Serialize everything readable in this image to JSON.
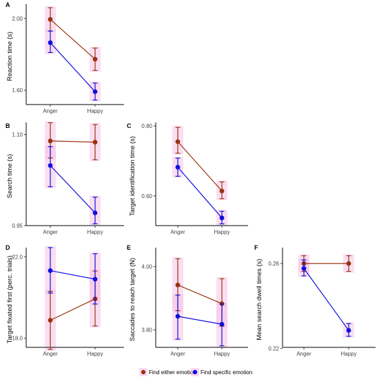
{
  "colors": {
    "either": "#993311",
    "specific": "#1010DD",
    "highlight": "#F6C2E6"
  },
  "legend": {
    "items": [
      {
        "key": "either",
        "label": "Find either emotion"
      },
      {
        "key": "specific",
        "label": "Find specific emotion"
      }
    ]
  },
  "chart_data": [
    {
      "id": "A",
      "type": "line",
      "letter": "A",
      "ylabel": "Reaction time (s)",
      "categories": [
        "Anger",
        "Happy"
      ],
      "ylim": [
        1.52,
        2.08
      ],
      "yticks": [
        1.6,
        2.0
      ],
      "ytick_labels": [
        "1.60",
        "2.00"
      ],
      "series": [
        {
          "key": "either",
          "values": [
            1.995,
            1.773
          ],
          "lower": [
            1.93,
            1.71
          ],
          "upper": [
            2.06,
            1.835
          ]
        },
        {
          "key": "specific",
          "values": [
            1.865,
            1.592
          ],
          "lower": [
            1.81,
            1.545
          ],
          "upper": [
            1.93,
            1.64
          ]
        }
      ]
    },
    {
      "id": "B",
      "type": "line",
      "letter": "B",
      "ylabel": "Search time (s)",
      "categories": [
        "Anger",
        "Happy"
      ],
      "ylim": [
        0.95,
        1.12
      ],
      "yticks": [
        0.95,
        1.1
      ],
      "ytick_labels": [
        "0.95",
        "1.10"
      ],
      "series": [
        {
          "key": "either",
          "values": [
            1.0895,
            1.0875
          ],
          "lower": [
            1.0615,
            1.0585
          ],
          "upper": [
            1.1195,
            1.1165
          ]
        },
        {
          "key": "specific",
          "values": [
            1.049,
            0.971
          ],
          "lower": [
            1.014,
            0.953
          ],
          "upper": [
            1.08,
            0.997
          ]
        }
      ]
    },
    {
      "id": "C",
      "type": "line",
      "letter": "C",
      "ylabel": "Target identification time (s)",
      "categories": [
        "Anger",
        "Happy"
      ],
      "ylim": [
        0.515,
        0.81
      ],
      "yticks": [
        0.6,
        0.8
      ],
      "ytick_labels": [
        "0.60",
        "0.80"
      ],
      "series": [
        {
          "key": "either",
          "values": [
            0.755,
            0.614
          ],
          "lower": [
            0.722,
            0.592
          ],
          "upper": [
            0.796,
            0.64
          ]
        },
        {
          "key": "specific",
          "values": [
            0.682,
            0.537
          ],
          "lower": [
            0.656,
            0.52
          ],
          "upper": [
            0.708,
            0.556
          ]
        }
      ]
    },
    {
      "id": "D",
      "type": "line",
      "letter": "D",
      "ylabel": "Target fixated first (perc. trials)",
      "categories": [
        "Anger",
        "Happy"
      ],
      "ylim": [
        17.55,
        22.45
      ],
      "yticks": [
        18.0,
        22.0
      ],
      "ytick_labels": [
        "18.0",
        "22.0"
      ],
      "series": [
        {
          "key": "either",
          "values": [
            18.88,
            19.93
          ],
          "lower": [
            17.45,
            18.6
          ],
          "upper": [
            20.3,
            21.3
          ]
        },
        {
          "key": "specific",
          "values": [
            21.32,
            20.9
          ],
          "lower": [
            20.22,
            19.68
          ],
          "upper": [
            22.45,
            22.15
          ]
        }
      ]
    },
    {
      "id": "E",
      "type": "line",
      "letter": "E",
      "ylabel": "Saccades to reach target (N)",
      "categories": [
        "Anger",
        "Happy"
      ],
      "ylim": [
        3.745,
        4.06
      ],
      "yticks": [
        3.8,
        4.0
      ],
      "ytick_labels": [
        "3.80",
        "4.00"
      ],
      "series": [
        {
          "key": "either",
          "values": [
            3.942,
            3.883
          ],
          "lower": [
            3.861,
            3.812
          ],
          "upper": [
            4.025,
            3.962
          ]
        },
        {
          "key": "specific",
          "values": [
            3.843,
            3.818
          ],
          "lower": [
            3.771,
            3.75
          ],
          "upper": [
            3.91,
            3.882
          ]
        }
      ]
    },
    {
      "id": "F",
      "type": "line",
      "letter": "F",
      "ylabel": "Mean search dwell times (s)",
      "categories": [
        "Anger",
        "Happy"
      ],
      "ylim": [
        0.2205,
        0.2675
      ],
      "yticks": [
        0.22,
        0.26
      ],
      "ytick_labels": [
        "0.22",
        "0.26"
      ],
      "series": [
        {
          "key": "either",
          "values": [
            0.26,
            0.26
          ],
          "lower": [
            0.2563,
            0.2563
          ],
          "upper": [
            0.2637,
            0.2637
          ]
        },
        {
          "key": "specific",
          "values": [
            0.2577,
            0.2285
          ],
          "lower": [
            0.2542,
            0.2257
          ],
          "upper": [
            0.2617,
            0.2317
          ]
        }
      ]
    }
  ]
}
